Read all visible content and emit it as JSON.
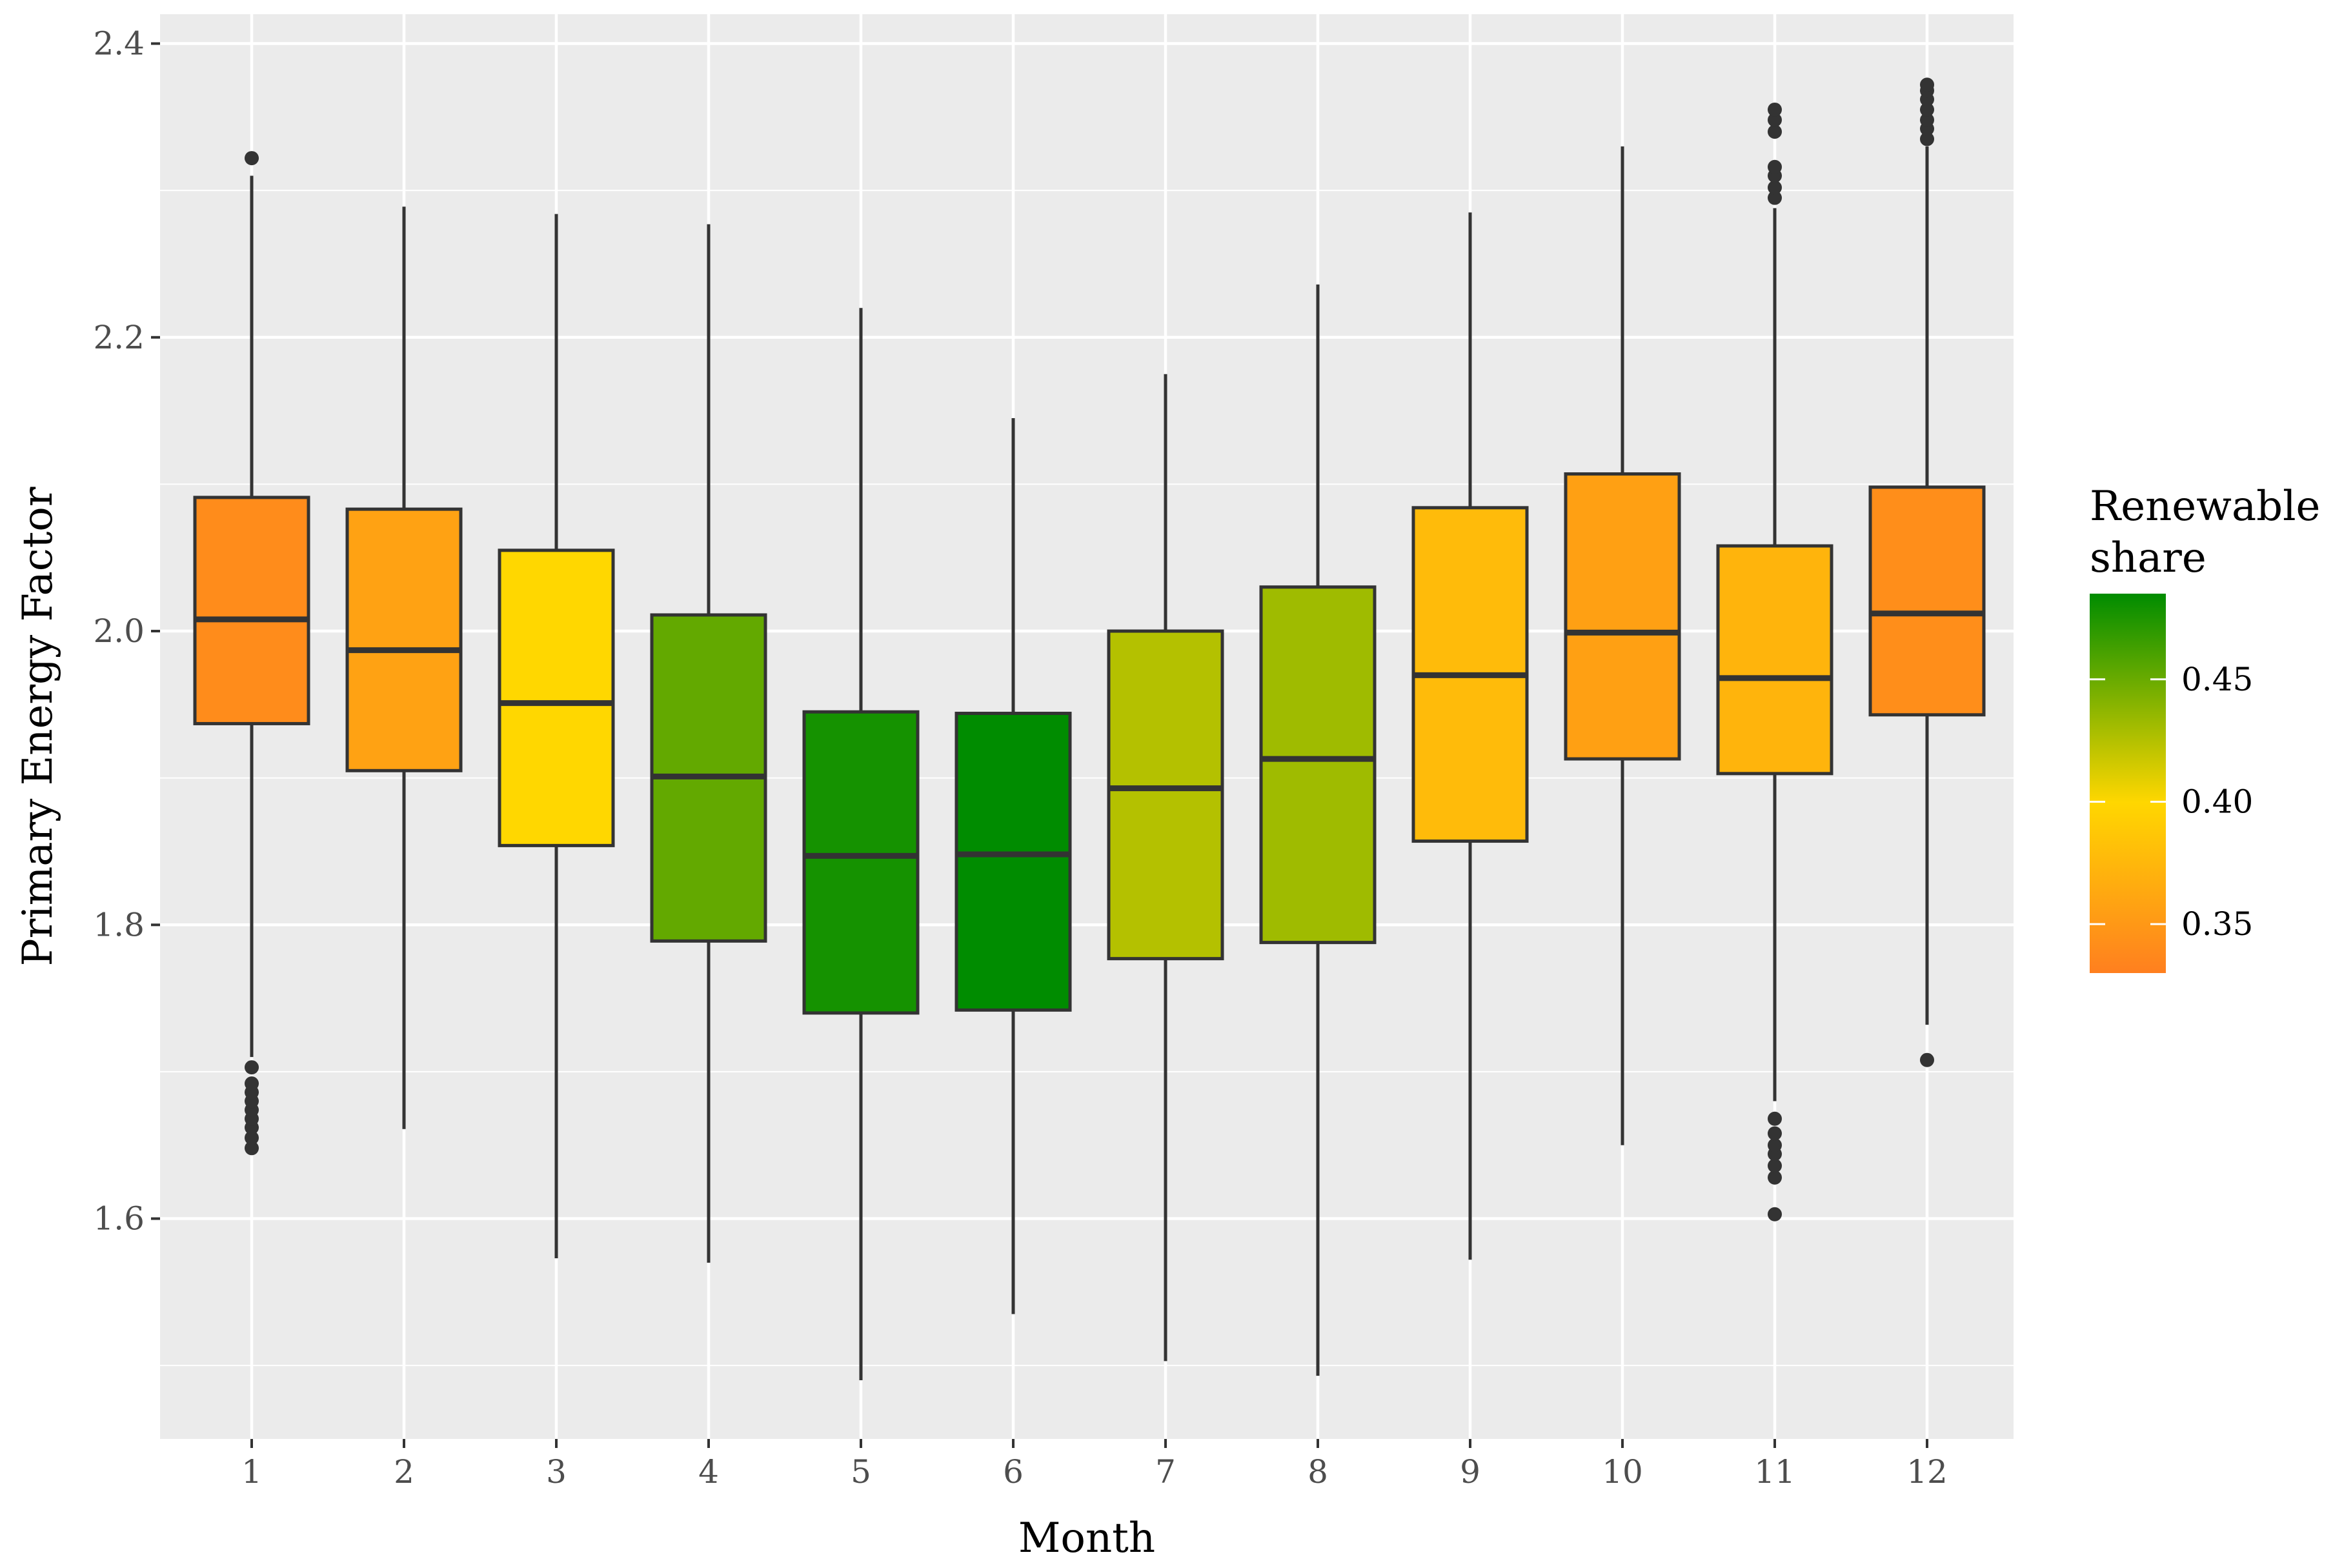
{
  "chart_data": {
    "type": "boxplot",
    "xlabel": "Month",
    "ylabel": "Primary Energy Factor",
    "ylim": [
      1.45,
      2.42
    ],
    "y_ticks": [
      1.6,
      1.8,
      2.0,
      2.2,
      2.4
    ],
    "y_tick_labels": [
      "1.6",
      "1.8",
      "2.0",
      "2.2",
      "2.4"
    ],
    "legend": {
      "title_lines": [
        "Renewable",
        "share"
      ],
      "range": [
        0.33,
        0.485
      ],
      "ticks": [
        0.35,
        0.4,
        0.45
      ],
      "tick_labels": [
        "0.35",
        "0.40",
        "0.45"
      ],
      "color_stops": [
        {
          "value": 0.33,
          "color": "#ff7f1f"
        },
        {
          "value": 0.4,
          "color": "#ffd700"
        },
        {
          "value": 0.485,
          "color": "#008c00"
        }
      ],
      "placement": "right"
    },
    "boxes": [
      {
        "month": "1",
        "renewable_share": 0.34,
        "whisker_low": 1.71,
        "q1": 1.937,
        "median": 2.008,
        "q3": 2.091,
        "whisker_high": 2.31,
        "outliers": [
          1.648,
          1.655,
          1.662,
          1.668,
          1.674,
          1.68,
          1.686,
          1.692,
          1.703,
          2.322
        ]
      },
      {
        "month": "2",
        "renewable_share": 0.358,
        "whisker_low": 1.661,
        "q1": 1.905,
        "median": 1.987,
        "q3": 2.083,
        "whisker_high": 2.289,
        "outliers": []
      },
      {
        "month": "3",
        "renewable_share": 0.4,
        "whisker_low": 1.573,
        "q1": 1.854,
        "median": 1.951,
        "q3": 2.055,
        "whisker_high": 2.284,
        "outliers": []
      },
      {
        "month": "4",
        "renewable_share": 0.452,
        "whisker_low": 1.57,
        "q1": 1.789,
        "median": 1.901,
        "q3": 2.011,
        "whisker_high": 2.277,
        "outliers": []
      },
      {
        "month": "5",
        "renewable_share": 0.478,
        "whisker_low": 1.49,
        "q1": 1.74,
        "median": 1.847,
        "q3": 1.945,
        "whisker_high": 2.22,
        "outliers": []
      },
      {
        "month": "6",
        "renewable_share": 0.485,
        "whisker_low": 1.535,
        "q1": 1.742,
        "median": 1.848,
        "q3": 1.944,
        "whisker_high": 2.145,
        "outliers": []
      },
      {
        "month": "7",
        "renewable_share": 0.425,
        "whisker_low": 1.503,
        "q1": 1.777,
        "median": 1.893,
        "q3": 2.0,
        "whisker_high": 2.175,
        "outliers": []
      },
      {
        "month": "8",
        "renewable_share": 0.432,
        "whisker_low": 1.493,
        "q1": 1.788,
        "median": 1.913,
        "q3": 2.03,
        "whisker_high": 2.236,
        "outliers": []
      },
      {
        "month": "9",
        "renewable_share": 0.378,
        "whisker_low": 1.572,
        "q1": 1.857,
        "median": 1.97,
        "q3": 2.084,
        "whisker_high": 2.285,
        "outliers": []
      },
      {
        "month": "10",
        "renewable_share": 0.356,
        "whisker_low": 1.65,
        "q1": 1.913,
        "median": 1.999,
        "q3": 2.107,
        "whisker_high": 2.33,
        "outliers": []
      },
      {
        "month": "11",
        "renewable_share": 0.372,
        "whisker_low": 1.68,
        "q1": 1.903,
        "median": 1.968,
        "q3": 2.058,
        "whisker_high": 2.288,
        "outliers": [
          1.603,
          1.628,
          1.636,
          1.644,
          1.65,
          1.658,
          1.668,
          2.295,
          2.302,
          2.31,
          2.316,
          2.34,
          2.348,
          2.355
        ]
      },
      {
        "month": "12",
        "renewable_share": 0.342,
        "whisker_low": 1.732,
        "q1": 1.943,
        "median": 2.012,
        "q3": 2.098,
        "whisker_high": 2.33,
        "outliers": [
          1.708,
          2.335,
          2.342,
          2.348,
          2.355,
          2.362,
          2.368,
          2.372
        ]
      }
    ]
  }
}
